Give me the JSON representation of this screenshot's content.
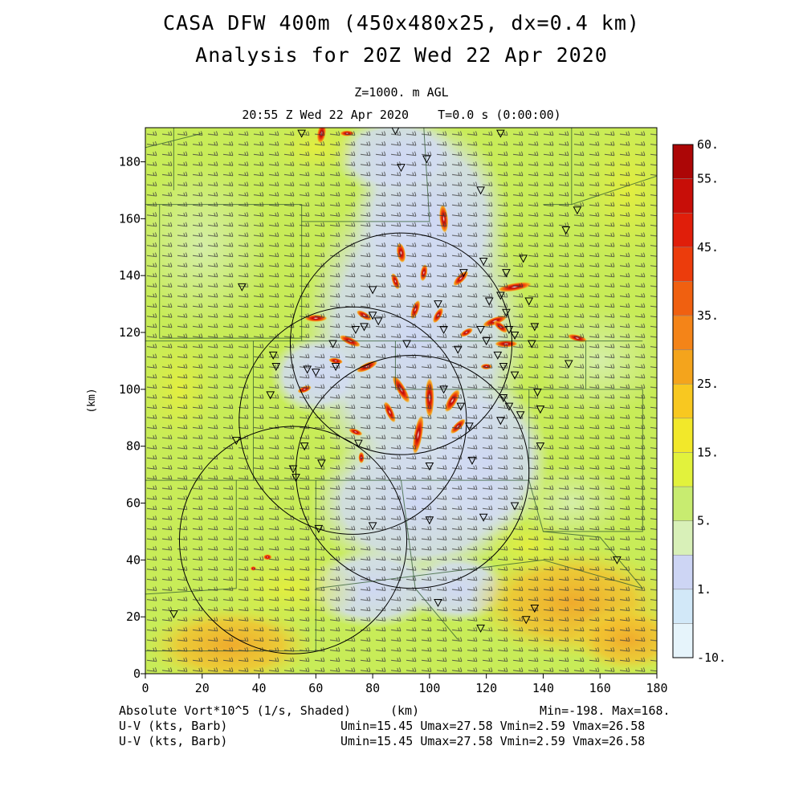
{
  "title_line1": "CASA DFW 400m (450x480x25, dx=0.4 km)",
  "title_line2": "Analysis for 20Z Wed 22 Apr 2020",
  "level_label": "Z=1000. m AGL",
  "time_label": "20:55 Z Wed 22 Apr 2020    T=0.0 s (0:00:00)",
  "footer": {
    "field_label": "Absolute Vort*10^5 (1/s, Shaded)",
    "xunit": "(km)",
    "minmax": "Min=-198. Max=168.",
    "barb_label_1": "U-V (kts, Barb)",
    "barb_label_2": "U-V (kts, Barb)",
    "barb_stats_1": "Umin=15.45 Umax=27.58 Vmin=2.59 Vmax=26.58",
    "barb_stats_2": "Umin=15.45 Umax=27.58 Vmin=2.59 Vmax=26.58"
  },
  "colors": {
    "background": "#ffffff",
    "field_base": "#c8ec58",
    "field_low": "#cfd8f4",
    "field_warm": "#f2be2c",
    "outline": "#2f5a2f",
    "circle": "#000000"
  },
  "chart_data": {
    "type": "heatmap",
    "xlabel": "(km)",
    "ylabel": "(km)",
    "xlim": [
      0,
      180
    ],
    "ylim": [
      0,
      192
    ],
    "xticks": [
      "0",
      "20",
      "40",
      "60",
      "80",
      "100",
      "120",
      "140",
      "160",
      "180"
    ],
    "yticks": [
      "0",
      "20",
      "40",
      "60",
      "80",
      "100",
      "120",
      "140",
      "160",
      "180"
    ],
    "colorbar": {
      "levels": [
        "-10.",
        "1.",
        "5.",
        "15.",
        "25.",
        "35.",
        "45.",
        "55.",
        "60."
      ],
      "colors": [
        "#e6f4fb",
        "#d2e8f8",
        "#cdd5f4",
        "#d8f0b8",
        "#c8ec70",
        "#e2f23c",
        "#f2e82a",
        "#f8c820",
        "#f4a41c",
        "#f48418",
        "#f06010",
        "#ec3c0c",
        "#e01e0a",
        "#c80e08",
        "#ac0606"
      ]
    },
    "radar_coverage_circles_km": [
      {
        "center": [
          90,
          116
        ],
        "radius": 39
      },
      {
        "center": [
          73,
          89
        ],
        "radius": 40
      },
      {
        "center": [
          94,
          71
        ],
        "radius": 41
      },
      {
        "center": [
          52,
          47
        ],
        "radius": 40
      }
    ],
    "field_min": -198,
    "field_max": 168,
    "u_kts_range": [
      15.45,
      27.58
    ],
    "v_kts_range": [
      2.59,
      26.58
    ]
  }
}
